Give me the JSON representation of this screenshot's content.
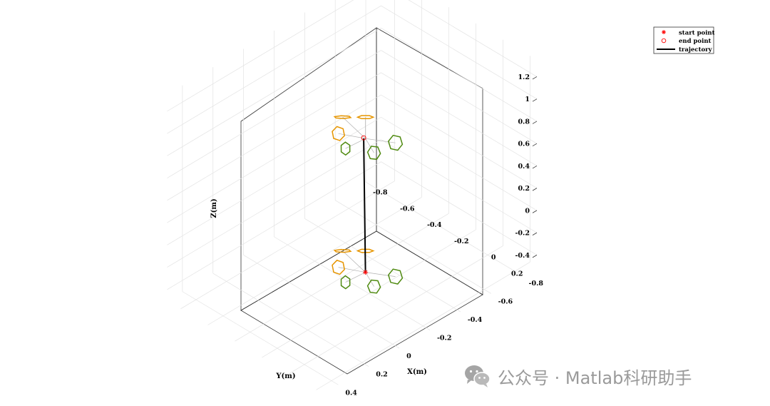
{
  "chart_data": {
    "type": "3d-line",
    "xlabel": "X(m)",
    "ylabel": "Y(m)",
    "zlabel": "Z(m)",
    "x_ticks": [
      "-0.8",
      "-0.6",
      "-0.4",
      "-0.2",
      "0",
      "0.2",
      "0.4"
    ],
    "y_ticks": [
      "-0.8",
      "-0.6",
      "-0.4",
      "-0.2",
      "0",
      "0.2"
    ],
    "z_ticks": [
      "1.2",
      "1",
      "0.8",
      "0.6",
      "0.4",
      "0.2",
      "0",
      "-0.2",
      "-0.4"
    ],
    "xlim": [
      -0.9,
      0.5
    ],
    "ylim": [
      -0.9,
      0.25
    ],
    "zlim": [
      -0.5,
      1.35
    ],
    "grid": true,
    "legend_position": "top-right",
    "legend": [
      {
        "label": "start point",
        "marker": "asterisk",
        "color": "#ff0000"
      },
      {
        "label": "end point",
        "marker": "circle",
        "color": "#ff0000"
      },
      {
        "label": "trajectory",
        "marker": "line",
        "color": "#000000"
      }
    ],
    "series": [
      {
        "name": "trajectory",
        "color": "#000000",
        "start": {
          "x": 0,
          "y": 0,
          "z": 0
        },
        "end": {
          "x": 0,
          "y": 0,
          "z": 1.2
        }
      }
    ],
    "drone_models": [
      {
        "at": "start",
        "z": 0
      },
      {
        "at": "end",
        "z": 1.2
      }
    ],
    "colors": {
      "rotor_front": "#e69500",
      "rotor_rear": "#4f8a10",
      "arm": "#b0b0b0",
      "marker": "#ff0000",
      "trajectory": "#000000"
    }
  },
  "watermark": {
    "text": "公众号 · Matlab科研助手"
  }
}
